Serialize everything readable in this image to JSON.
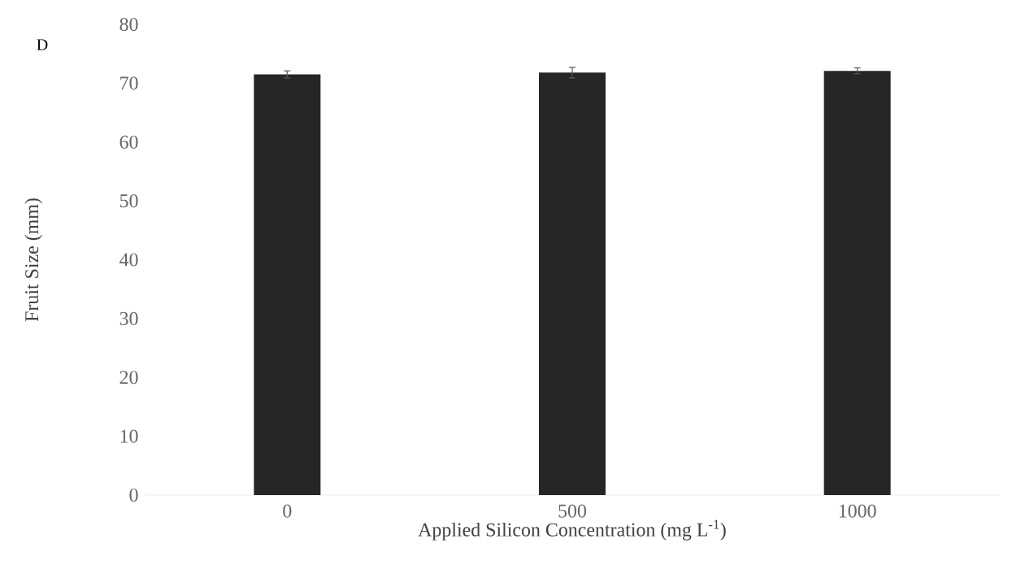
{
  "chart_data": {
    "type": "bar",
    "xlabel": "Applied Silicon Concentration (mg L$^{-1}$)",
    "ylabel": "Fruit Size (mm)",
    "annotations": [
      "D"
    ],
    "categories": [
      "0",
      "500",
      "1000"
    ],
    "values": [
      71.5,
      71.8,
      72.1
    ],
    "errors": [
      0.6,
      0.9,
      0.5
    ],
    "color": "#262626",
    "ylim": [
      0,
      80
    ],
    "yticks": [
      0,
      10,
      20,
      30,
      40,
      50,
      60,
      70,
      80
    ]
  }
}
